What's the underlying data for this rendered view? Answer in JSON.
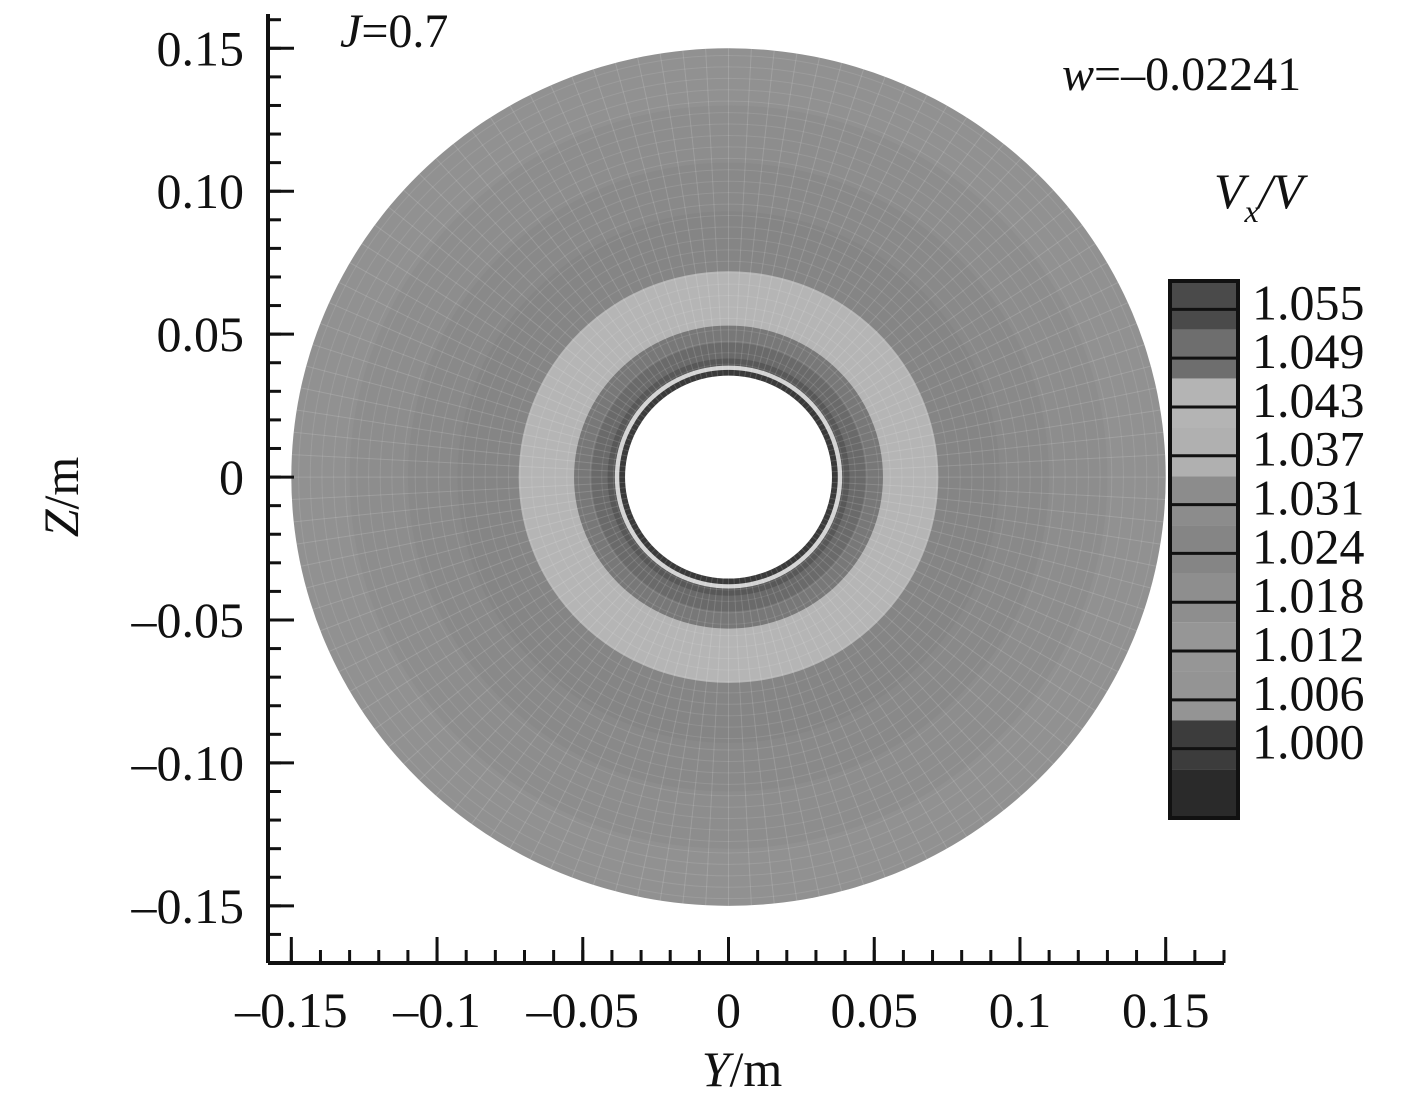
{
  "chart_data": {
    "type": "contour",
    "annotations": {
      "j_symbol": "J",
      "j_value": "=0.7",
      "w_symbol": "w",
      "w_value": "=–0.02241"
    },
    "xlabel": {
      "var": "Y",
      "unit": "/m"
    },
    "ylabel": {
      "var": "Z",
      "unit": "/m"
    },
    "xlim": [
      -0.158,
      0.17
    ],
    "ylim": [
      -0.17,
      0.162
    ],
    "x_ticks": [
      {
        "value": -0.15,
        "label": "–0.15"
      },
      {
        "value": -0.1,
        "label": "–0.1"
      },
      {
        "value": -0.05,
        "label": "–0.05"
      },
      {
        "value": 0,
        "label": "0"
      },
      {
        "value": 0.05,
        "label": "0.05"
      },
      {
        "value": 0.1,
        "label": "0.1"
      },
      {
        "value": 0.15,
        "label": "0.15"
      }
    ],
    "y_ticks": [
      {
        "value": 0.15,
        "label": "0.15"
      },
      {
        "value": 0.1,
        "label": "0.10"
      },
      {
        "value": 0.05,
        "label": "0.05"
      },
      {
        "value": 0,
        "label": "0"
      },
      {
        "value": -0.05,
        "label": "–0.05"
      },
      {
        "value": -0.1,
        "label": "–0.10"
      },
      {
        "value": -0.15,
        "label": "–0.15"
      }
    ],
    "minor_tick_step": 0.01,
    "colorbar": {
      "title_var": "V",
      "title_sub": "x",
      "title_rest": "/V",
      "levels": [
        "1.055",
        "1.049",
        "1.043",
        "1.037",
        "1.031",
        "1.024",
        "1.018",
        "1.012",
        "1.006",
        "1.000"
      ],
      "colors": [
        "#4a4a4a",
        "#6e6e6e",
        "#b4b4b4",
        "#b0b0b0",
        "#8c8c8c",
        "#858585",
        "#8e8e8e",
        "#969696",
        "#949494",
        "#3c3c3c",
        "#2a2a2a"
      ]
    },
    "rings": [
      {
        "r": 0.15,
        "color": "#919191"
      },
      {
        "r": 0.13,
        "color": "#8d8d8d"
      },
      {
        "r": 0.11,
        "color": "#898989"
      },
      {
        "r": 0.093,
        "color": "#858585"
      },
      {
        "r": 0.072,
        "color": "#b5b5b5"
      },
      {
        "r": 0.053,
        "color": "#787878"
      },
      {
        "r": 0.047,
        "color": "#6a6a6a"
      },
      {
        "r": 0.0415,
        "color": "#585858"
      },
      {
        "r": 0.039,
        "color": "#d4d4d4"
      },
      {
        "r": 0.0375,
        "color": "#3a3a3a"
      },
      {
        "r": 0.0355,
        "color": "#ffffff"
      }
    ]
  }
}
